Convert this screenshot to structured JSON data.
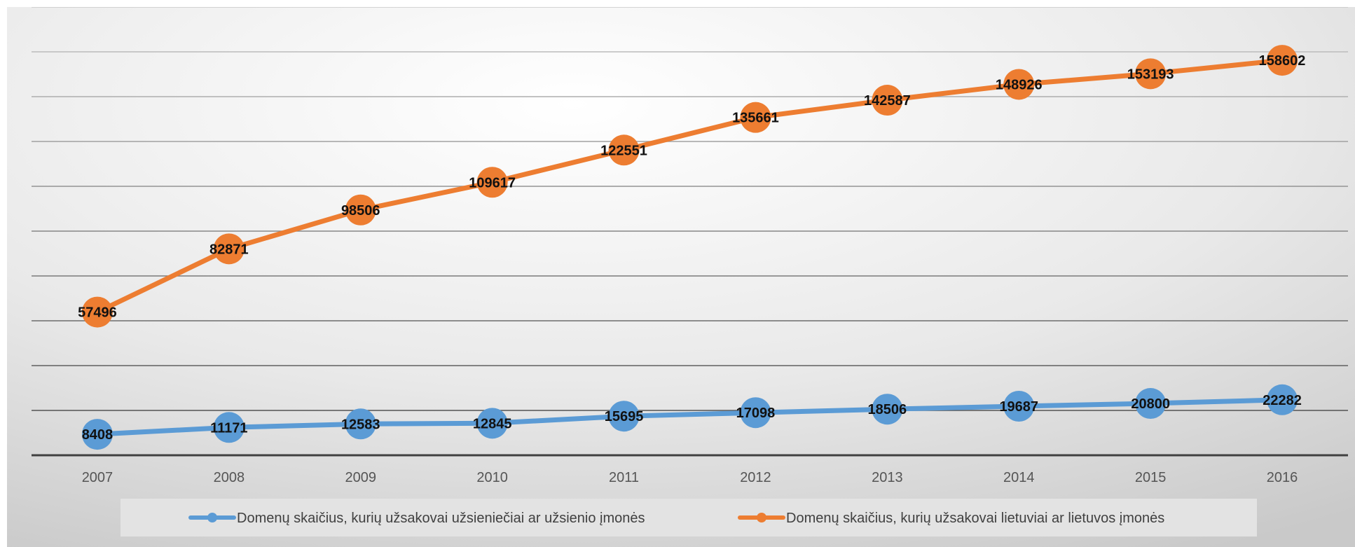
{
  "chart_data": {
    "type": "line",
    "title": "",
    "xlabel": "",
    "ylabel": "",
    "categories": [
      "2007",
      "2008",
      "2009",
      "2010",
      "2011",
      "2012",
      "2013",
      "2014",
      "2015",
      "2016"
    ],
    "ylim": [
      0,
      180000
    ],
    "grid": true,
    "legend_position": "bottom",
    "series": [
      {
        "name": "Domenų skaičius, kurių užsakovai užsieniečiai ar užsienio įmonės",
        "color": "#5B9BD5",
        "values": [
          8408,
          11171,
          12583,
          12845,
          15695,
          17098,
          18506,
          19687,
          20800,
          22282
        ]
      },
      {
        "name": "Domenų skaičius, kurių užsakovai lietuviai ar lietuvos įmonės",
        "color": "#ED7D31",
        "values": [
          57496,
          82871,
          98506,
          109617,
          122551,
          135661,
          142587,
          148926,
          153193,
          158602
        ]
      }
    ]
  }
}
